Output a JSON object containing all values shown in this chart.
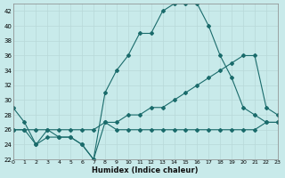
{
  "xlabel": "Humidex (Indice chaleur)",
  "bg_color": "#c8eaea",
  "grid_color": "#d4eded",
  "line_color": "#1a6b6b",
  "xmin": 0,
  "xmax": 23,
  "ymin": 22,
  "ymax": 43,
  "yticks": [
    22,
    24,
    26,
    28,
    30,
    32,
    34,
    36,
    38,
    40,
    42
  ],
  "xticks": [
    0,
    1,
    2,
    3,
    4,
    5,
    6,
    7,
    8,
    9,
    10,
    11,
    12,
    13,
    14,
    15,
    16,
    17,
    18,
    19,
    20,
    21,
    22,
    23
  ],
  "line1_x": [
    0,
    1,
    2,
    3,
    4,
    5,
    6,
    7,
    8,
    9,
    10,
    11,
    12,
    13,
    14,
    15,
    16,
    17,
    18,
    19,
    20,
    21,
    22,
    23
  ],
  "line1_y": [
    29,
    27,
    24,
    25,
    25,
    25,
    24,
    22,
    31,
    34,
    36,
    39,
    39,
    42,
    43,
    43,
    43,
    40,
    36,
    33,
    29,
    28,
    27,
    27
  ],
  "line2_x": [
    0,
    1,
    2,
    3,
    4,
    5,
    6,
    7,
    8,
    9,
    10,
    11,
    12,
    13,
    14,
    15,
    16,
    17,
    18,
    19,
    20,
    21,
    22,
    23
  ],
  "line2_y": [
    26,
    26,
    26,
    26,
    26,
    26,
    26,
    26,
    27,
    27,
    28,
    28,
    29,
    29,
    30,
    31,
    32,
    33,
    34,
    35,
    36,
    36,
    29,
    28
  ],
  "line3_x": [
    0,
    1,
    2,
    3,
    4,
    5,
    6,
    7,
    8,
    9,
    10,
    11,
    12,
    13,
    14,
    15,
    16,
    17,
    18,
    19,
    20,
    21,
    22,
    23
  ],
  "line3_y": [
    26,
    26,
    24,
    26,
    25,
    25,
    24,
    22,
    27,
    26,
    26,
    26,
    26,
    26,
    26,
    26,
    26,
    26,
    26,
    26,
    26,
    26,
    27,
    27
  ]
}
